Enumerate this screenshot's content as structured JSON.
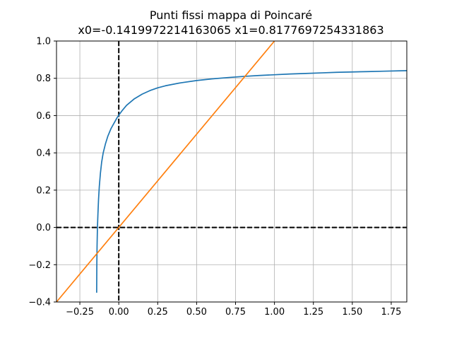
{
  "chart_data": {
    "type": "line",
    "title": "Punti fissi mappa di Poincaré",
    "subtitle": "x0=-0.1419972214163065 x1=0.8177697254331863",
    "xlabel": "",
    "ylabel": "",
    "xlim": [
      -0.4,
      1.85
    ],
    "ylim": [
      -0.4,
      1.0
    ],
    "grid": true,
    "x_ticks": [
      -0.25,
      0.0,
      0.25,
      0.5,
      0.75,
      1.0,
      1.25,
      1.5,
      1.75
    ],
    "x_tick_labels": [
      "−0.25",
      "0.00",
      "0.25",
      "0.50",
      "0.75",
      "1.00",
      "1.25",
      "1.50",
      "1.75"
    ],
    "y_ticks": [
      -0.4,
      -0.2,
      0.0,
      0.2,
      0.4,
      0.6,
      0.8,
      1.0
    ],
    "y_tick_labels": [
      "−0.4",
      "−0.2",
      "0.0",
      "0.2",
      "0.4",
      "0.6",
      "0.8",
      "1.0"
    ],
    "series": [
      {
        "color": "#1f77b4",
        "style": "solid",
        "x": [
          -0.142,
          -0.141,
          -0.1395,
          -0.137,
          -0.134,
          -0.13,
          -0.125,
          -0.118,
          -0.11,
          -0.1,
          -0.085,
          -0.07,
          -0.05,
          -0.03,
          -0.01,
          0.0,
          0.02,
          0.05,
          0.1,
          0.15,
          0.2,
          0.25,
          0.3,
          0.4,
          0.5,
          0.6,
          0.7,
          0.8,
          0.9,
          1.0,
          1.1,
          1.2,
          1.3,
          1.4,
          1.5,
          1.6,
          1.7,
          1.85
        ],
        "y": [
          -0.35,
          -0.2,
          -0.1,
          0.0,
          0.07,
          0.15,
          0.22,
          0.29,
          0.35,
          0.4,
          0.45,
          0.49,
          0.53,
          0.56,
          0.59,
          0.602,
          0.625,
          0.655,
          0.69,
          0.715,
          0.734,
          0.749,
          0.76,
          0.776,
          0.788,
          0.797,
          0.804,
          0.81,
          0.815,
          0.819,
          0.823,
          0.826,
          0.829,
          0.832,
          0.834,
          0.836,
          0.838,
          0.841
        ]
      },
      {
        "color": "#ff7f0e",
        "style": "solid",
        "x": [
          -0.4,
          1.0
        ],
        "y": [
          -0.4,
          1.0
        ]
      }
    ],
    "reference_lines": [
      {
        "orientation": "vertical",
        "value": 0.0,
        "color": "#000000",
        "style": "dashed"
      },
      {
        "orientation": "horizontal",
        "value": 0.0,
        "color": "#000000",
        "style": "dashed"
      }
    ]
  }
}
